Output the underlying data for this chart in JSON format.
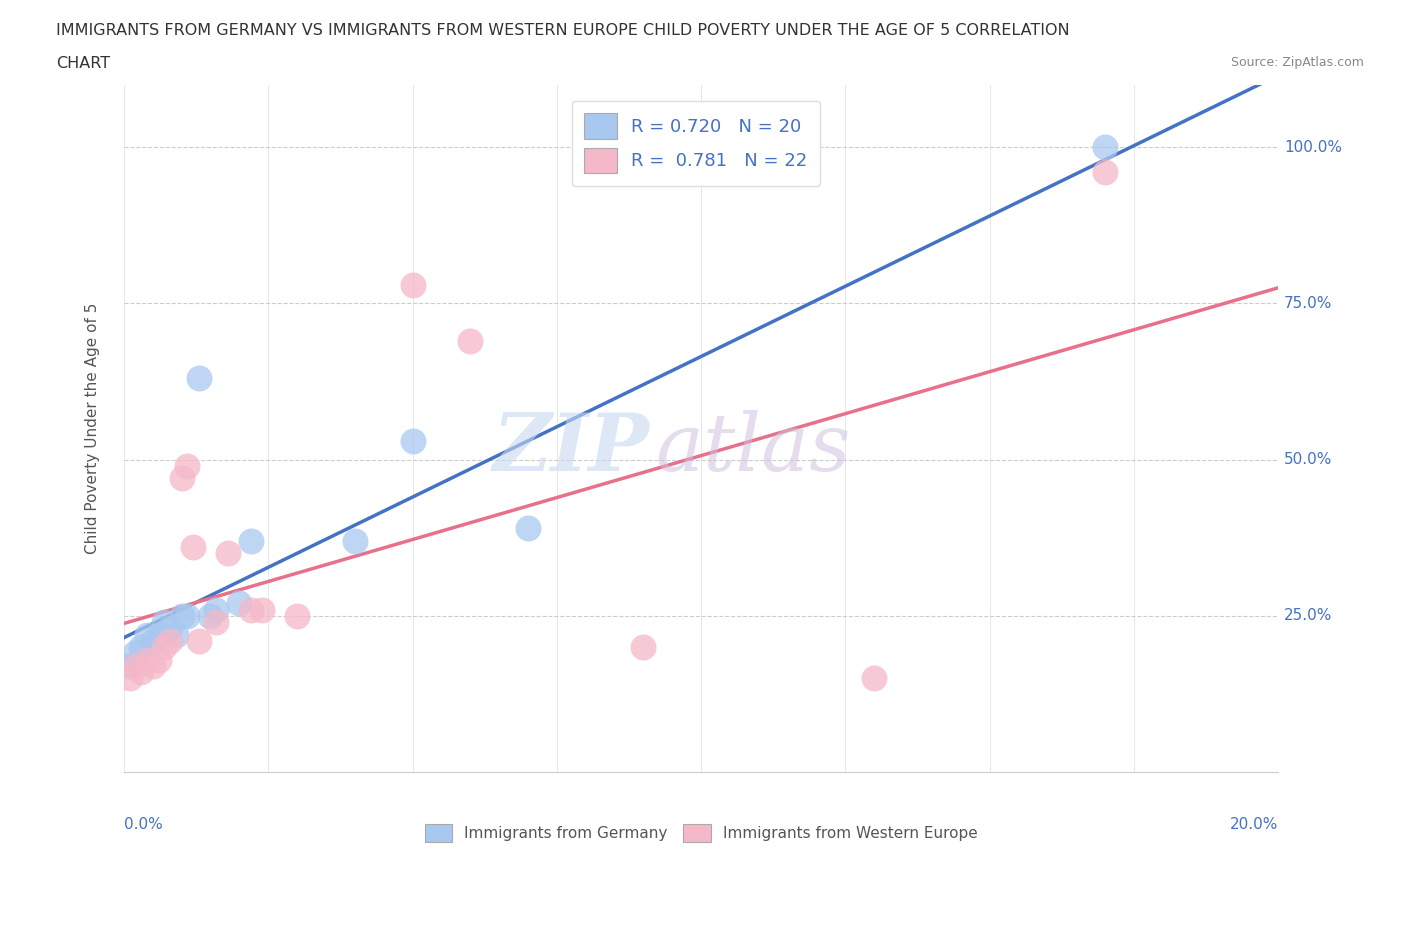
{
  "title_line1": "IMMIGRANTS FROM GERMANY VS IMMIGRANTS FROM WESTERN EUROPE CHILD POVERTY UNDER THE AGE OF 5 CORRELATION",
  "title_line2": "CHART",
  "source": "Source: ZipAtlas.com",
  "ylabel": "Child Poverty Under the Age of 5",
  "legend1_label": "R = 0.720   N = 20",
  "legend2_label": "R =  0.781   N = 22",
  "legend_bottom1": "Immigrants from Germany",
  "legend_bottom2": "Immigrants from Western Europe",
  "y_ticks": [
    0.25,
    0.5,
    0.75,
    1.0
  ],
  "y_tick_labels": [
    "25.0%",
    "50.0%",
    "75.0%",
    "100.0%"
  ],
  "color_germany": "#A8C8F0",
  "color_western": "#F5B8C8",
  "color_line_germany": "#4472C4",
  "color_line_western": "#E8708A",
  "watermark_zip": "ZIP",
  "watermark_atlas": "atlas",
  "germany_x": [
    0.001,
    0.002,
    0.003,
    0.004,
    0.005,
    0.006,
    0.007,
    0.008,
    0.009,
    0.01,
    0.011,
    0.013,
    0.015,
    0.016,
    0.02,
    0.022,
    0.04,
    0.05,
    0.07,
    0.17
  ],
  "germany_y": [
    0.17,
    0.19,
    0.2,
    0.22,
    0.21,
    0.22,
    0.24,
    0.23,
    0.22,
    0.25,
    0.25,
    0.63,
    0.25,
    0.26,
    0.27,
    0.37,
    0.37,
    0.53,
    0.39,
    1.0
  ],
  "western_x": [
    0.001,
    0.002,
    0.003,
    0.004,
    0.005,
    0.006,
    0.007,
    0.008,
    0.01,
    0.011,
    0.012,
    0.013,
    0.016,
    0.018,
    0.022,
    0.024,
    0.03,
    0.05,
    0.06,
    0.09,
    0.13,
    0.17
  ],
  "western_y": [
    0.15,
    0.17,
    0.16,
    0.18,
    0.17,
    0.18,
    0.2,
    0.21,
    0.47,
    0.49,
    0.36,
    0.21,
    0.24,
    0.35,
    0.26,
    0.26,
    0.25,
    0.78,
    0.69,
    0.2,
    0.15,
    0.96
  ],
  "xlim": [
    0.0,
    0.2
  ],
  "ylim": [
    0.0,
    1.1
  ]
}
